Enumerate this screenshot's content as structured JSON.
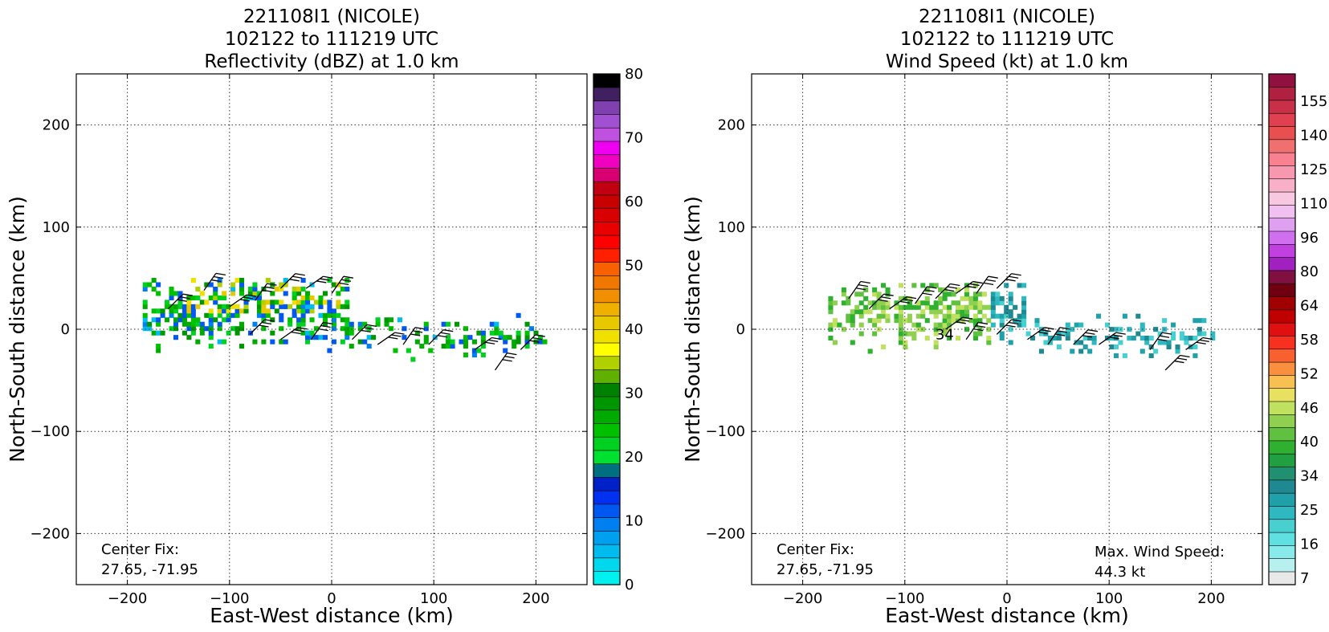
{
  "chart_data": [
    {
      "type": "heatmap",
      "title_lines": [
        "221108I1 (NICOLE)",
        "102122 to 111219 UTC",
        "Reflectivity (dBZ) at 1.0 km"
      ],
      "xlabel": "East-West distance (km)",
      "ylabel": "North-South distance (km)",
      "xlim": [
        -250,
        250
      ],
      "ylim": [
        -250,
        250
      ],
      "xticks": [
        -200,
        -100,
        0,
        100,
        200
      ],
      "yticks": [
        -200,
        -100,
        0,
        100,
        200
      ],
      "grid": true,
      "center_fix": {
        "label": "Center Fix:",
        "value": "27.65, -71.95"
      },
      "colorbar": {
        "min": 0,
        "max": 80,
        "tick_labels": [
          "0",
          "10",
          "20",
          "30",
          "40",
          "50",
          "60",
          "70",
          "80"
        ],
        "tick_values": [
          0,
          10,
          20,
          30,
          40,
          50,
          60,
          70,
          80
        ],
        "colors": [
          "#00f0f0",
          "#00d8ee",
          "#00bbee",
          "#00a0f0",
          "#0080f0",
          "#0058f0",
          "#0030f0",
          "#0020c8",
          "#007080",
          "#00e030",
          "#00d020",
          "#00c000",
          "#00aa00",
          "#009600",
          "#008000",
          "#60b000",
          "#b0d000",
          "#ffff00",
          "#f0e000",
          "#e8c800",
          "#f0b000",
          "#f09000",
          "#f07800",
          "#f86000",
          "#ff2000",
          "#ff0000",
          "#e80000",
          "#d80000",
          "#c80000",
          "#c00010",
          "#d80070",
          "#f000c0",
          "#f000f0",
          "#c050e0",
          "#a050d0",
          "#8040b0",
          "#402060",
          "#000000"
        ]
      },
      "data_extent": {
        "x_range": [
          -185,
          210
        ],
        "y_range": [
          -40,
          48
        ]
      },
      "barb_positions_km": [
        [
          -125,
          38
        ],
        [
          -160,
          20
        ],
        [
          -100,
          22
        ],
        [
          -75,
          28
        ],
        [
          -50,
          40
        ],
        [
          -25,
          40
        ],
        [
          0,
          35
        ],
        [
          -80,
          -5
        ],
        [
          -50,
          -10
        ],
        [
          -20,
          -10
        ],
        [
          20,
          -10
        ],
        [
          45,
          -15
        ],
        [
          70,
          -15
        ],
        [
          95,
          -15
        ],
        [
          140,
          -20
        ],
        [
          160,
          -40
        ],
        [
          185,
          -20
        ]
      ]
    },
    {
      "type": "heatmap",
      "title_lines": [
        "221108I1 (NICOLE)",
        "102122 to 111219 UTC",
        "Wind Speed (kt) at 1.0 km"
      ],
      "xlabel": "East-West distance (km)",
      "ylabel": "North-South distance (km)",
      "xlim": [
        -250,
        250
      ],
      "ylim": [
        -250,
        250
      ],
      "xticks": [
        -200,
        -100,
        0,
        100,
        200
      ],
      "yticks": [
        -200,
        -100,
        0,
        100,
        200
      ],
      "grid": true,
      "center_fix": {
        "label": "Center Fix:",
        "value": "27.65, -71.95"
      },
      "max_wind": {
        "label": "Max. Wind Speed:",
        "value": "44.3 kt"
      },
      "contour_label": "34",
      "colorbar": {
        "tick_labels": [
          "7",
          "16",
          "25",
          "34",
          "40",
          "46",
          "52",
          "58",
          "64",
          "80",
          "96",
          "110",
          "125",
          "140",
          "155"
        ],
        "colors": [
          "#e8e8e8",
          "#b8f0f0",
          "#88eaea",
          "#60e0e0",
          "#48d0d0",
          "#30b8c0",
          "#20a0a8",
          "#208890",
          "#209070",
          "#20a040",
          "#30b030",
          "#60c040",
          "#90d050",
          "#c0e060",
          "#e8e060",
          "#f8c050",
          "#f89040",
          "#f86030",
          "#f83020",
          "#e01010",
          "#c00000",
          "#a00000",
          "#700010",
          "#801040",
          "#a020c0",
          "#c040e0",
          "#d070f0",
          "#e0a0f0",
          "#f0c0f0",
          "#f8c8e0",
          "#f8b0c8",
          "#f898b0",
          "#f88090",
          "#f07070",
          "#e85050",
          "#e04050",
          "#c83048",
          "#b02040",
          "#901040"
        ]
      },
      "data_extent": {
        "x_range": [
          -175,
          200
        ],
        "y_range": [
          -45,
          45
        ]
      },
      "barb_positions_km": [
        [
          -155,
          30
        ],
        [
          -135,
          20
        ],
        [
          -115,
          20
        ],
        [
          -90,
          25
        ],
        [
          -70,
          30
        ],
        [
          -50,
          35
        ],
        [
          -30,
          35
        ],
        [
          -10,
          40
        ],
        [
          -60,
          0
        ],
        [
          -40,
          -10
        ],
        [
          -10,
          -5
        ],
        [
          20,
          -10
        ],
        [
          40,
          -15
        ],
        [
          65,
          -15
        ],
        [
          90,
          -15
        ],
        [
          140,
          -20
        ],
        [
          155,
          -40
        ],
        [
          175,
          -20
        ]
      ]
    }
  ]
}
